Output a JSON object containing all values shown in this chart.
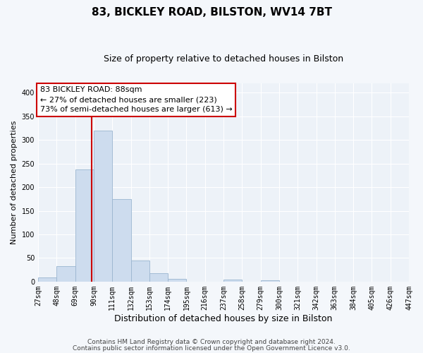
{
  "title1": "83, BICKLEY ROAD, BILSTON, WV14 7BT",
  "title2": "Size of property relative to detached houses in Bilston",
  "xlabel": "Distribution of detached houses by size in Bilston",
  "ylabel": "Number of detached properties",
  "bin_labels": [
    "27sqm",
    "48sqm",
    "69sqm",
    "90sqm",
    "111sqm",
    "132sqm",
    "153sqm",
    "174sqm",
    "195sqm",
    "216sqm",
    "237sqm",
    "258sqm",
    "279sqm",
    "300sqm",
    "321sqm",
    "342sqm",
    "363sqm",
    "384sqm",
    "405sqm",
    "426sqm",
    "447sqm"
  ],
  "bar_values": [
    8,
    32,
    238,
    320,
    175,
    45,
    17,
    5,
    0,
    0,
    4,
    0,
    3,
    0,
    0,
    0,
    0,
    0,
    0,
    0,
    3
  ],
  "bin_edges": [
    27,
    48,
    69,
    90,
    111,
    132,
    153,
    174,
    195,
    216,
    237,
    258,
    279,
    300,
    321,
    342,
    363,
    384,
    405,
    426,
    447
  ],
  "bar_color": "#cddcee",
  "bar_edge_color": "#9ab5d0",
  "vline_x": 88,
  "vline_color": "#cc0000",
  "ylim": [
    0,
    420
  ],
  "yticks": [
    0,
    50,
    100,
    150,
    200,
    250,
    300,
    350,
    400
  ],
  "annotation_line1": "83 BICKLEY ROAD: 88sqm",
  "annotation_line2": "← 27% of detached houses are smaller (223)",
  "annotation_line3": "73% of semi-detached houses are larger (613) →",
  "annotation_box_color": "#ffffff",
  "annotation_box_edge": "#cc0000",
  "footer1": "Contains HM Land Registry data © Crown copyright and database right 2024.",
  "footer2": "Contains public sector information licensed under the Open Government Licence v3.0.",
  "fig_bg_color": "#f4f7fb",
  "ax_bg_color": "#edf2f8",
  "grid_color": "#ffffff",
  "title1_fontsize": 11,
  "title2_fontsize": 9,
  "ylabel_fontsize": 8,
  "xlabel_fontsize": 9,
  "tick_fontsize": 7,
  "footer_fontsize": 6.5,
  "annot_fontsize": 8
}
